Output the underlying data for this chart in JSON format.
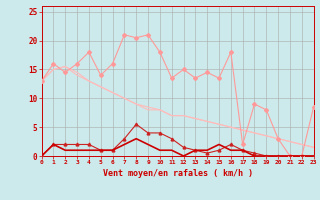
{
  "x": [
    0,
    1,
    2,
    3,
    4,
    5,
    6,
    7,
    8,
    9,
    10,
    11,
    12,
    13,
    14,
    15,
    16,
    17,
    18,
    19,
    20,
    21,
    22,
    23
  ],
  "line1": [
    0,
    2,
    1,
    1,
    1,
    1,
    1,
    2,
    3,
    2,
    1,
    1,
    0,
    1,
    1,
    2,
    1,
    1,
    0,
    0,
    0,
    0,
    0,
    0
  ],
  "line2": [
    0,
    2,
    2,
    2,
    2,
    1,
    1,
    3,
    5.5,
    4,
    4,
    3,
    1.5,
    1,
    0.5,
    1,
    2,
    1,
    0.5,
    0,
    0,
    0,
    0,
    0
  ],
  "line3": [
    13,
    16,
    14.5,
    16,
    18,
    14,
    16,
    21,
    20.5,
    21,
    18,
    13.5,
    15,
    13.5,
    14.5,
    13.5,
    18,
    2,
    9,
    8,
    3,
    0,
    0,
    8.5
  ],
  "line4": [
    13,
    15,
    15.5,
    14,
    13,
    12,
    11,
    10,
    9,
    8,
    8,
    7,
    7,
    6.5,
    6,
    5.5,
    5,
    4.5,
    4,
    3.5,
    3,
    2.5,
    2,
    1.5
  ],
  "line5": [
    13,
    15,
    15.5,
    14.5,
    13,
    12,
    11,
    10,
    9,
    8.5,
    8,
    7,
    7,
    6.5,
    6,
    5.5,
    5,
    4.5,
    4,
    3.5,
    3,
    2.5,
    2,
    1.5
  ],
  "bg_color": "#cceaeb",
  "grid_color": "#aaaaaa",
  "line1_color": "#cc0000",
  "line2_color": "#cc2222",
  "line3_color": "#ff9999",
  "line4_color": "#ffbbbb",
  "line5_color": "#ffbbbb",
  "xlabel": "Vent moyen/en rafales ( km/h )",
  "xlabel_color": "#cc0000",
  "tick_color": "#cc0000",
  "ylim": [
    0,
    26
  ],
  "xlim": [
    0,
    23
  ],
  "yticks": [
    0,
    5,
    10,
    15,
    20,
    25
  ],
  "xticks": [
    0,
    1,
    2,
    3,
    4,
    5,
    6,
    7,
    8,
    9,
    10,
    11,
    12,
    13,
    14,
    15,
    16,
    17,
    18,
    19,
    20,
    21,
    22,
    23
  ]
}
